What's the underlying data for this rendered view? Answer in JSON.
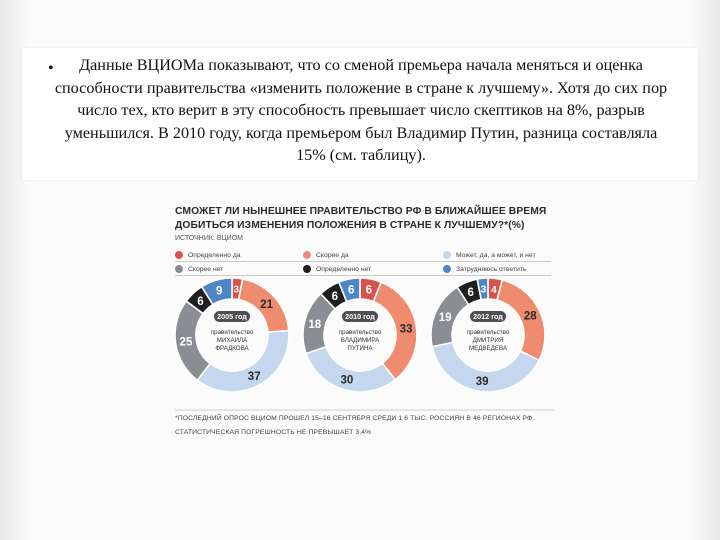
{
  "slide": {
    "bullet": "•",
    "paragraph": "Данные ВЦИОМа показывают, что со сменой премьера начала меняться и оценка способности правительства «изменить положение в стране к лучшему». Хотя до сих пор число тех, кто верит в эту способность превышает число скептиков на 8%, разрыв уменьшился. В 2010 году, когда премьером был Владимир Путин, разница составляла 15% (см. таблицу)."
  },
  "figure": {
    "title_line1": "СМОЖЕТ ЛИ НЫНЕШНЕЕ ПРАВИТЕЛЬСТВО РФ В БЛИЖАЙШЕЕ ВРЕМЯ",
    "title_line2": "ДОБИТЬСЯ ИЗМЕНЕНИЯ ПОЛОЖЕНИЯ В СТРАНЕ К ЛУЧШЕМУ?*(%)",
    "source": "ИСТОЧНИК: ВЦИОМ",
    "footnote_line1": "*ПОСЛЕДНИЙ ОПРОС ВЦИОМ ПРОШЕЛ 15–16 СЕНТЯБРЯ СРЕДИ 1 6 ТЫС. РОССИЯН В 46 РЕГИОНАХ РФ.",
    "footnote_line2": "СТАТИСТИЧЕСКАЯ ПОГРЕШНОСТЬ НЕ ПРЕВЫШАЕТ 3,4%"
  },
  "chart_data": {
    "type": "pie",
    "title": "СМОЖЕТ ЛИ НЫНЕШНЕЕ ПРАВИТЕЛЬСТВО РФ В БЛИЖАЙШЕЕ ВРЕМЯ ДОБИТЬСЯ ИЗМЕНЕНИЯ ПОЛОЖЕНИЯ В СТРАНЕ К ЛУЧШЕМУ?*(%)",
    "categories": [
      "Определенно да",
      "Скорее да",
      "Может, да, а может, и нет",
      "Скорее нет",
      "Определенно нет",
      "Затрудняюсь ответить"
    ],
    "colors": [
      "#d9534a",
      "#ef8c6f",
      "#c5d7ee",
      "#8a8d92",
      "#1f1f1f",
      "#4f86c6"
    ],
    "legend_placement": "top",
    "series": [
      {
        "year": "2005 год",
        "label": "правительство МИХАИЛА ФРАДКОВА",
        "values": [
          3,
          21,
          37,
          25,
          6,
          9
        ]
      },
      {
        "year": "2010 год",
        "label": "правительство ВЛАДИМИРА ПУТИНА",
        "values": [
          6,
          33,
          30,
          18,
          6,
          6
        ]
      },
      {
        "year": "2012 год",
        "label": "правительство ДМИТРИЯ МЕДВЕДЕВА",
        "values": [
          4,
          28,
          39,
          19,
          6,
          3
        ]
      }
    ]
  }
}
